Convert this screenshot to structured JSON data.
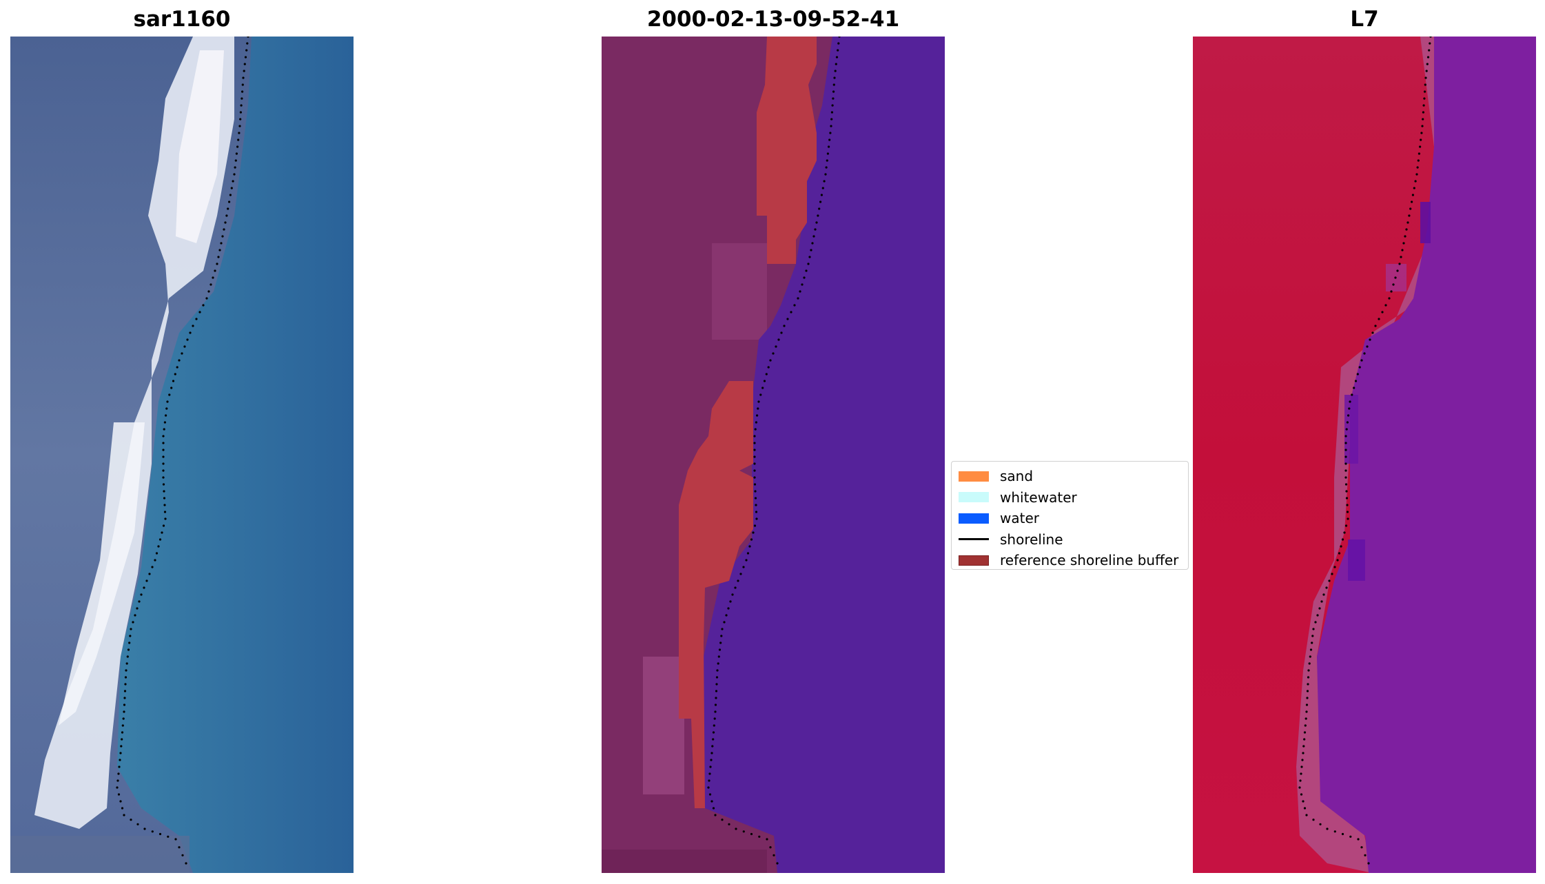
{
  "figure": {
    "panels": [
      {
        "title": "sar1160",
        "palette": "rgb"
      },
      {
        "title": "2000-02-13-09-52-41",
        "palette": "classified"
      },
      {
        "title": "L7",
        "palette": "falsecolor"
      }
    ],
    "legend": {
      "items": [
        {
          "label": "sand",
          "kind": "patch",
          "color": "#ff8c42",
          "border": "#ff8c42"
        },
        {
          "label": "whitewater",
          "kind": "patch",
          "color": "#c9fbfb",
          "border": "#c9fbfb"
        },
        {
          "label": "water",
          "kind": "patch",
          "color": "#0a5cff",
          "border": "#0a5cff"
        },
        {
          "label": "shoreline",
          "kind": "line",
          "color": "#000000"
        },
        {
          "label": "reference shoreline buffer",
          "kind": "patch",
          "color": "#a03232",
          "border": "#7a1e1e"
        }
      ]
    },
    "colors": {
      "water_rgb": "#2f6d9f",
      "beach_rgb": "#e9eef6",
      "land_rgb": "#5a6f9a",
      "water_class": "#55229a",
      "buffer_class": "#b83a46",
      "land_class": "#7a2a62",
      "land_false": "#c2143a",
      "water_false": "#7e1fa0"
    }
  }
}
